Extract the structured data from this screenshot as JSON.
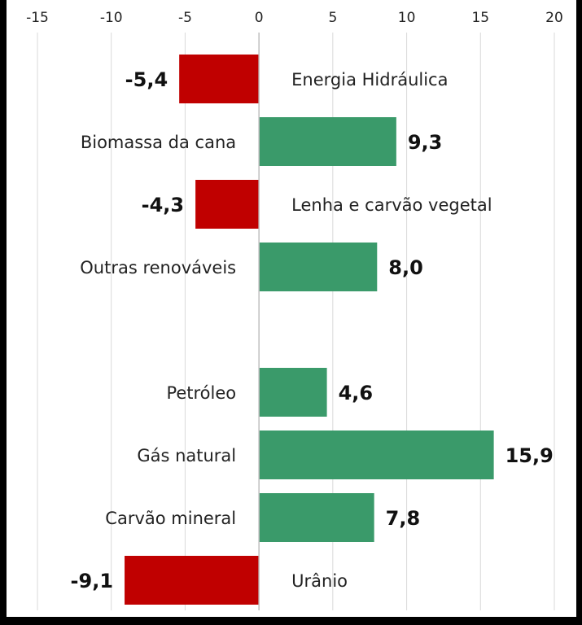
{
  "chart_data": {
    "type": "bar",
    "orientation": "horizontal",
    "categories": [
      "Energia Hidráulica",
      "Biomassa da cana",
      "Lenha e carvão vegetal",
      "Outras renováveis",
      "",
      "Petróleo",
      "Gás natural",
      "Carvão mineral",
      "Urânio"
    ],
    "values": [
      -5.4,
      9.3,
      -4.3,
      8.0,
      null,
      4.6,
      15.9,
      7.8,
      -9.1
    ],
    "value_labels": [
      "-5,4",
      "9,3",
      "-4,3",
      "8,0",
      "",
      "4,6",
      "15,9",
      "7,8",
      "-9,1"
    ],
    "title": "",
    "xlabel": "",
    "ylabel": "",
    "xlim": [
      -15,
      20
    ],
    "x_ticks": [
      -15,
      -10,
      -5,
      0,
      5,
      10,
      15,
      20
    ],
    "x_tick_labels": [
      "-15",
      "-10",
      "-5",
      "0",
      "5",
      "10",
      "15",
      "20"
    ],
    "axis_position": "top",
    "grid": true,
    "legend": "none",
    "colors": {
      "positive": "#3a9a6a",
      "negative": "#c00000",
      "grid": "#d9d9d9",
      "axis": "#bfbfbf"
    }
  }
}
